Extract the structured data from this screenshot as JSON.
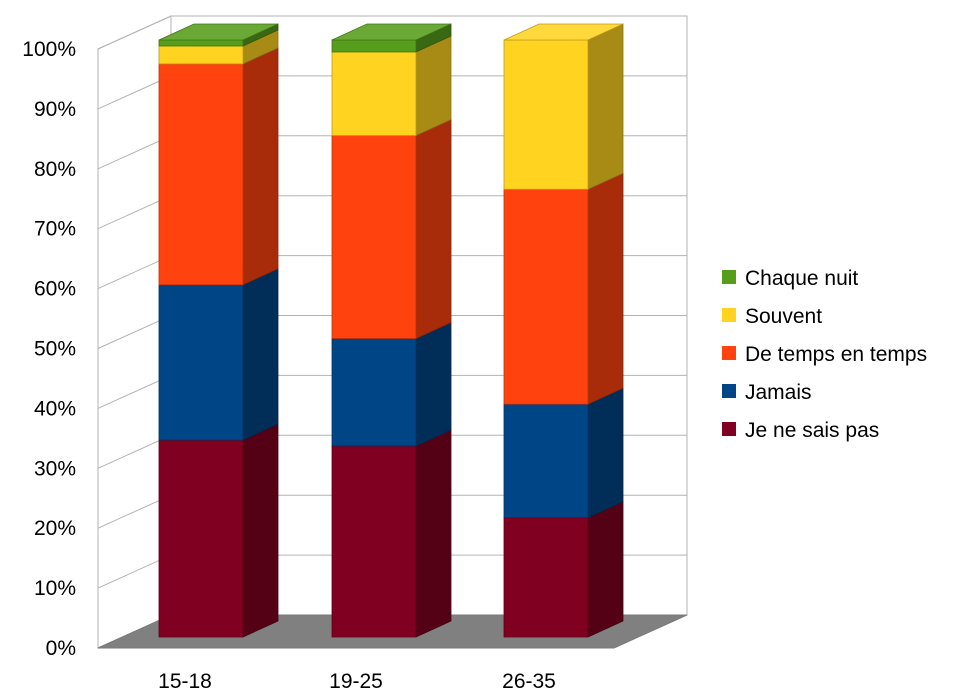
{
  "chart_data": {
    "type": "bar",
    "stacked": true,
    "normalized": true,
    "three_d": true,
    "categories": [
      "15-18",
      "19-25",
      "26-35"
    ],
    "series": [
      {
        "name": "Je ne sais pas",
        "color": "#7f0020",
        "values": [
          33,
          32,
          20
        ]
      },
      {
        "name": "Jamais",
        "color": "#004586",
        "values": [
          26,
          18,
          19
        ]
      },
      {
        "name": "De temps en temps",
        "color": "#ff420e",
        "values": [
          37,
          34,
          36
        ]
      },
      {
        "name": "Souvent",
        "color": "#ffd320",
        "values": [
          3,
          14,
          25
        ]
      },
      {
        "name": "Chaque nuit",
        "color": "#579d1c",
        "values": [
          1,
          2,
          0
        ]
      }
    ],
    "ylim": [
      0,
      100
    ],
    "yticks": [
      "0%",
      "10%",
      "20%",
      "30%",
      "40%",
      "50%",
      "60%",
      "70%",
      "80%",
      "90%",
      "100%"
    ],
    "grid": true,
    "legend_position": "right"
  }
}
